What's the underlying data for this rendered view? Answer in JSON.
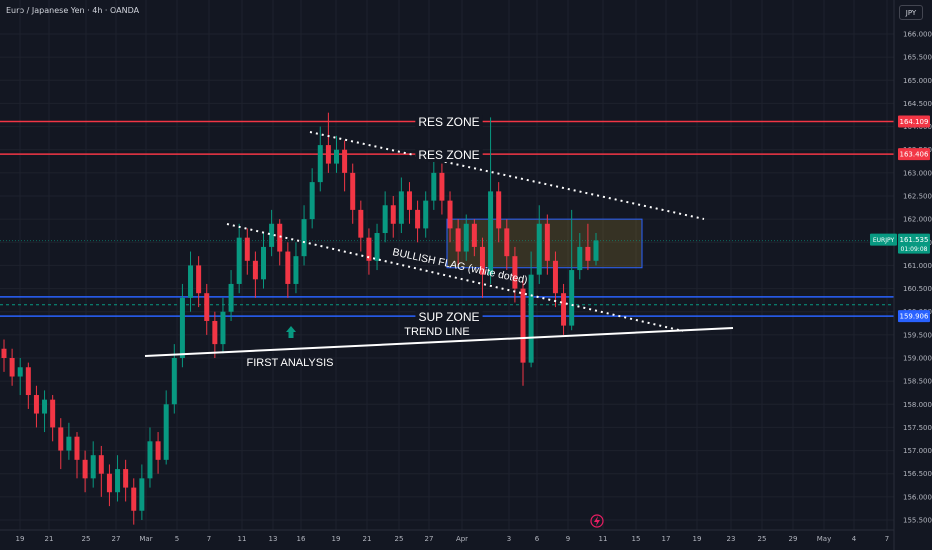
{
  "title": "Euro / Japanese Yen · 4h · OANDA",
  "currency": "JPY",
  "colors": {
    "background": "#131722",
    "grid": "#1e222d",
    "up": "#089981",
    "down": "#f23645",
    "res_line": "#f23645",
    "sup_line": "#2962ff",
    "white": "#ffffff"
  },
  "chart_data": {
    "type": "candlestick",
    "symbol": "EURJPY",
    "price_axis": {
      "ylim": [
        155.25,
        166.5
      ],
      "ticks": [
        "166.000",
        "165.500",
        "165.000",
        "164.500",
        "164.000",
        "163.500",
        "163.000",
        "162.500",
        "162.000",
        "161.500",
        "161.000",
        "160.500",
        "160.000",
        "159.500",
        "159.000",
        "158.500",
        "158.000",
        "157.500",
        "157.000",
        "156.500",
        "156.000",
        "155.500"
      ]
    },
    "time_axis": {
      "labels": [
        "19",
        "21",
        "25",
        "27",
        "Mar",
        "5",
        "7",
        "11",
        "13",
        "16",
        "19",
        "21",
        "25",
        "27",
        "Apr",
        "3",
        "6",
        "9",
        "11",
        "15",
        "17",
        "19",
        "23",
        "25",
        "29",
        "May",
        "4",
        "7"
      ]
    },
    "current_price": {
      "label": "EURJPY",
      "value": "161.535",
      "countdown": "01:09:08"
    },
    "price_badges": [
      {
        "value": "164.109",
        "color": "#f23645"
      },
      {
        "value": "163.406",
        "color": "#f23645"
      },
      {
        "value": "159.906",
        "color": "#2962ff"
      }
    ],
    "horizontal_levels": [
      {
        "price": 164.109,
        "color": "#f23645",
        "label": "RES ZONE"
      },
      {
        "price": 163.406,
        "color": "#f23645",
        "label": "RES ZONE"
      },
      {
        "price": 160.32,
        "color": "#2962ff",
        "label": ""
      },
      {
        "price": 159.906,
        "color": "#2962ff",
        "label": "SUP ZONE"
      }
    ],
    "annotations": [
      {
        "text": "RES ZONE"
      },
      {
        "text": "RES ZONE"
      },
      {
        "text": "BULLISH FLAG (white doted)"
      },
      {
        "text": "SUP ZONE"
      },
      {
        "text": "TREND LINE"
      },
      {
        "text": "FIRST ANALYSIS"
      }
    ],
    "rectangle_zone": {
      "top": 162.0,
      "bottom": 160.95
    },
    "candles": [
      [
        159.2,
        159.0,
        159.4,
        158.7
      ],
      [
        159.0,
        158.6,
        159.2,
        158.4
      ],
      [
        158.6,
        158.8,
        159.0,
        158.2
      ],
      [
        158.8,
        158.2,
        158.9,
        157.9
      ],
      [
        158.2,
        157.8,
        158.4,
        157.5
      ],
      [
        157.8,
        158.1,
        158.3,
        157.4
      ],
      [
        158.1,
        157.5,
        158.2,
        157.2
      ],
      [
        157.5,
        157.0,
        157.7,
        156.6
      ],
      [
        157.0,
        157.3,
        157.6,
        156.8
      ],
      [
        157.3,
        156.8,
        157.4,
        156.4
      ],
      [
        156.8,
        156.4,
        157.0,
        156.1
      ],
      [
        156.4,
        156.9,
        157.2,
        156.2
      ],
      [
        156.9,
        156.5,
        157.1,
        156.0
      ],
      [
        156.5,
        156.1,
        156.7,
        155.8
      ],
      [
        156.1,
        156.6,
        156.9,
        155.9
      ],
      [
        156.6,
        156.2,
        156.8,
        155.9
      ],
      [
        156.2,
        155.7,
        156.4,
        155.4
      ],
      [
        155.7,
        156.4,
        156.7,
        155.5
      ],
      [
        156.4,
        157.2,
        157.5,
        156.2
      ],
      [
        157.2,
        156.8,
        157.4,
        156.5
      ],
      [
        156.8,
        158.0,
        158.3,
        156.7
      ],
      [
        158.0,
        159.0,
        159.3,
        157.8
      ],
      [
        159.0,
        160.3,
        160.6,
        158.8
      ],
      [
        160.3,
        161.0,
        161.3,
        160.0
      ],
      [
        161.0,
        160.4,
        161.2,
        160.1
      ],
      [
        160.4,
        159.8,
        160.6,
        159.5
      ],
      [
        159.8,
        159.3,
        160.0,
        159.0
      ],
      [
        159.3,
        160.0,
        160.3,
        159.1
      ],
      [
        160.0,
        160.6,
        160.9,
        159.8
      ],
      [
        160.6,
        161.6,
        161.9,
        160.4
      ],
      [
        161.6,
        161.1,
        161.8,
        160.8
      ],
      [
        161.1,
        160.7,
        161.3,
        160.3
      ],
      [
        160.7,
        161.4,
        161.7,
        160.5
      ],
      [
        161.4,
        161.9,
        162.2,
        161.2
      ],
      [
        161.9,
        161.3,
        162.0,
        161.0
      ],
      [
        161.3,
        160.6,
        161.5,
        160.3
      ],
      [
        160.6,
        161.2,
        161.5,
        160.4
      ],
      [
        161.2,
        162.0,
        162.3,
        161.0
      ],
      [
        162.0,
        162.8,
        163.1,
        161.8
      ],
      [
        162.8,
        163.6,
        164.0,
        162.6
      ],
      [
        163.6,
        163.2,
        164.3,
        163.0
      ],
      [
        163.2,
        163.5,
        163.8,
        163.0
      ],
      [
        163.5,
        163.0,
        163.7,
        162.6
      ],
      [
        163.0,
        162.2,
        163.2,
        161.9
      ],
      [
        162.2,
        161.6,
        162.4,
        161.3
      ],
      [
        161.6,
        161.1,
        161.8,
        160.8
      ],
      [
        161.1,
        161.7,
        161.9,
        160.9
      ],
      [
        161.7,
        162.3,
        162.6,
        161.5
      ],
      [
        162.3,
        161.9,
        162.5,
        161.6
      ],
      [
        161.9,
        162.6,
        162.9,
        161.7
      ],
      [
        162.6,
        162.2,
        162.8,
        161.9
      ],
      [
        162.2,
        161.8,
        162.4,
        161.5
      ],
      [
        161.8,
        162.4,
        162.6,
        161.6
      ],
      [
        162.4,
        163.0,
        163.3,
        162.2
      ],
      [
        163.0,
        162.4,
        163.2,
        162.1
      ],
      [
        162.4,
        161.8,
        162.6,
        161.5
      ],
      [
        161.8,
        161.3,
        162.0,
        161.0
      ],
      [
        161.3,
        161.9,
        162.1,
        161.1
      ],
      [
        161.9,
        161.4,
        162.0,
        161.2
      ],
      [
        161.4,
        160.8,
        161.6,
        160.3
      ],
      [
        160.8,
        162.6,
        164.2,
        160.6
      ],
      [
        162.6,
        161.8,
        162.8,
        161.5
      ],
      [
        161.8,
        161.2,
        162.0,
        160.9
      ],
      [
        161.2,
        160.5,
        161.4,
        160.2
      ],
      [
        160.5,
        158.9,
        160.7,
        158.4
      ],
      [
        158.9,
        160.8,
        161.3,
        158.8
      ],
      [
        160.8,
        161.9,
        162.3,
        160.6
      ],
      [
        161.9,
        161.1,
        162.1,
        160.8
      ],
      [
        161.1,
        160.4,
        161.3,
        160.1
      ],
      [
        160.4,
        159.7,
        160.6,
        159.5
      ],
      [
        159.7,
        160.9,
        162.2,
        159.6
      ],
      [
        160.9,
        161.4,
        161.7,
        160.7
      ],
      [
        161.4,
        161.1,
        161.9,
        160.9
      ],
      [
        161.1,
        161.54,
        161.7,
        161.0
      ]
    ]
  }
}
